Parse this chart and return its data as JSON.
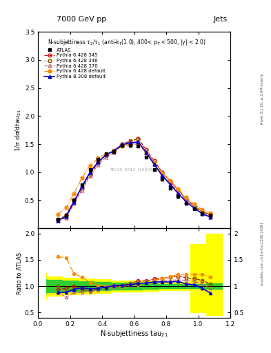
{
  "title_top": "7000 GeV pp",
  "title_right": "Jets",
  "xlabel": "N-subjettiness tau$_{21}$",
  "ylabel_main": "1/σ dσ/dtau$_{21}$",
  "ylabel_ratio": "Ratio to ATLAS",
  "annotation": "N-subjettiness τ$_2$/τ$_1$ (anti-k$_T$(1.0), 400< p$_T$ < 500, |y| < 2.0)",
  "watermark": "ATLAS_2012_I1094564",
  "x": [
    0.125,
    0.175,
    0.225,
    0.275,
    0.325,
    0.375,
    0.425,
    0.475,
    0.525,
    0.575,
    0.625,
    0.675,
    0.725,
    0.775,
    0.825,
    0.875,
    0.925,
    0.975,
    1.025,
    1.075
  ],
  "atlas": [
    0.16,
    0.24,
    0.5,
    0.77,
    1.05,
    1.23,
    1.33,
    1.37,
    1.47,
    1.48,
    1.46,
    1.27,
    1.05,
    0.87,
    0.72,
    0.57,
    0.45,
    0.35,
    0.27,
    0.23
  ],
  "py6_345_y": [
    0.15,
    0.23,
    0.5,
    0.72,
    0.96,
    1.18,
    1.3,
    1.38,
    1.5,
    1.55,
    1.6,
    1.4,
    1.2,
    1.0,
    0.84,
    0.68,
    0.52,
    0.4,
    0.3,
    0.24
  ],
  "py6_346_y": [
    0.16,
    0.22,
    0.47,
    0.73,
    0.97,
    1.17,
    1.32,
    1.39,
    1.5,
    1.56,
    1.58,
    1.38,
    1.18,
    0.99,
    0.84,
    0.68,
    0.52,
    0.4,
    0.3,
    0.24
  ],
  "py6_370_y": [
    0.14,
    0.19,
    0.44,
    0.68,
    0.94,
    1.13,
    1.27,
    1.35,
    1.47,
    1.5,
    1.53,
    1.34,
    1.14,
    0.96,
    0.8,
    0.64,
    0.5,
    0.38,
    0.28,
    0.22
  ],
  "py6_def_y": [
    0.25,
    0.37,
    0.62,
    0.9,
    1.12,
    1.25,
    1.33,
    1.38,
    1.46,
    1.49,
    1.5,
    1.35,
    1.17,
    0.99,
    0.85,
    0.7,
    0.55,
    0.43,
    0.33,
    0.27
  ],
  "py8_def_y": [
    0.14,
    0.21,
    0.47,
    0.75,
    1.0,
    1.18,
    1.31,
    1.38,
    1.49,
    1.52,
    1.54,
    1.35,
    1.14,
    0.94,
    0.78,
    0.62,
    0.47,
    0.36,
    0.26,
    0.2
  ],
  "ratio_345": [
    0.93,
    0.96,
    1.0,
    0.94,
    0.91,
    0.96,
    0.98,
    1.01,
    1.02,
    1.05,
    1.1,
    1.1,
    1.14,
    1.15,
    1.17,
    1.19,
    1.16,
    1.14,
    1.11,
    1.04
  ],
  "ratio_346": [
    1.0,
    0.92,
    0.94,
    0.95,
    0.92,
    0.95,
    0.99,
    1.01,
    1.02,
    1.05,
    1.08,
    1.09,
    1.12,
    1.14,
    1.17,
    1.19,
    1.16,
    1.14,
    1.11,
    1.04
  ],
  "ratio_370": [
    0.88,
    0.79,
    0.88,
    0.88,
    0.9,
    0.92,
    0.95,
    0.99,
    1.0,
    1.01,
    1.05,
    1.06,
    1.08,
    1.1,
    1.11,
    1.12,
    1.11,
    1.09,
    1.04,
    0.96
  ],
  "ratio_def": [
    1.56,
    1.54,
    1.24,
    1.17,
    1.07,
    1.02,
    1.0,
    1.01,
    0.99,
    1.01,
    1.03,
    1.06,
    1.11,
    1.14,
    1.18,
    1.23,
    1.22,
    1.23,
    1.22,
    1.17
  ],
  "ratio_py8": [
    0.88,
    0.88,
    0.94,
    0.97,
    0.95,
    0.96,
    0.98,
    1.01,
    1.01,
    1.03,
    1.05,
    1.06,
    1.08,
    1.08,
    1.08,
    1.09,
    1.04,
    1.03,
    0.96,
    0.87
  ],
  "green_band_x": [
    0.05,
    0.15,
    0.25,
    0.35,
    0.45,
    0.55,
    0.65,
    0.75,
    0.85,
    0.95,
    1.05,
    1.15
  ],
  "green_band_lo": [
    0.87,
    0.88,
    0.9,
    0.91,
    0.92,
    0.93,
    0.94,
    0.95,
    0.96,
    0.96,
    0.96,
    0.95
  ],
  "green_band_hi": [
    1.13,
    1.12,
    1.1,
    1.09,
    1.08,
    1.07,
    1.06,
    1.05,
    1.04,
    1.04,
    1.04,
    1.05
  ],
  "yellow_band_x": [
    0.05,
    0.15,
    0.25,
    0.35,
    0.45,
    0.55,
    0.65,
    0.75,
    0.85,
    0.95,
    1.05,
    1.15
  ],
  "yellow_band_lo": [
    0.75,
    0.82,
    0.84,
    0.86,
    0.87,
    0.89,
    0.9,
    0.91,
    0.92,
    0.92,
    0.5,
    0.45
  ],
  "yellow_band_hi": [
    1.25,
    1.18,
    1.16,
    1.14,
    1.13,
    1.11,
    1.1,
    1.09,
    1.08,
    1.08,
    1.8,
    2.0
  ],
  "color_345": "#dd0000",
  "color_346": "#886600",
  "color_370": "#cc6666",
  "color_def": "#ff8800",
  "color_py8": "#0000cc",
  "xlim": [
    0.0,
    1.2
  ],
  "ylim_main": [
    0.0,
    3.5
  ],
  "ylim_ratio": [
    0.4,
    2.1
  ],
  "yticks_main": [
    0.5,
    1.0,
    1.5,
    2.0,
    2.5,
    3.0,
    3.5
  ],
  "yticks_ratio": [
    0.5,
    1.0,
    1.5,
    2.0
  ]
}
